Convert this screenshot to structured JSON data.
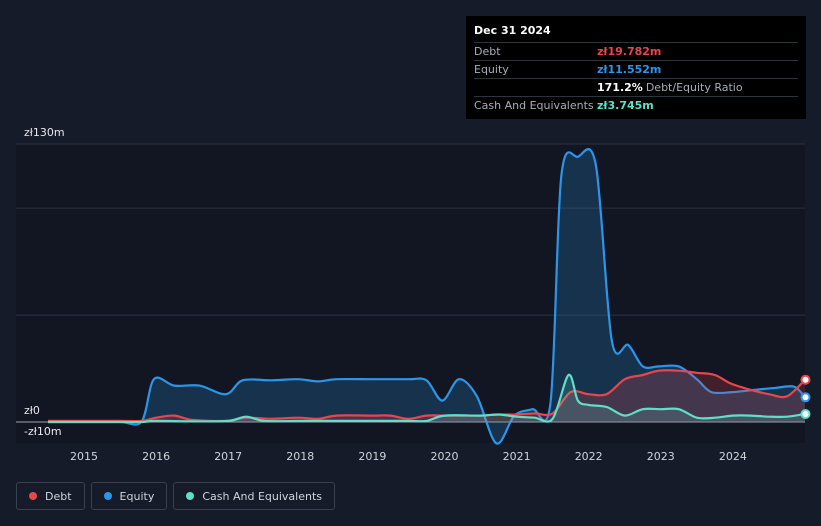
{
  "tooltip": {
    "date": "Dec 31 2024",
    "rows": [
      {
        "label": "Debt",
        "value": "zł19.782m",
        "color": "#e8464e"
      },
      {
        "label": "Equity",
        "value": "zł11.552m",
        "color": "#2d95e8"
      },
      {
        "label": "",
        "value": "171.2%",
        "unit": "Debt/Equity Ratio",
        "color": "#ffffff"
      },
      {
        "label": "Cash And Equivalents",
        "value": "zł3.745m",
        "color": "#5ee0c8"
      }
    ]
  },
  "legend": [
    {
      "label": "Debt",
      "color": "#e8464e"
    },
    {
      "label": "Equity",
      "color": "#2d95e8"
    },
    {
      "label": "Cash And Equivalents",
      "color": "#5ee0c8"
    }
  ],
  "chart_data": {
    "type": "area",
    "y_labels": [
      "zł130m",
      "zł0",
      "-zł10m"
    ],
    "ylim": [
      -10,
      130
    ],
    "xlim": [
      2014.5,
      2025.0
    ],
    "x_ticks": [
      2015,
      2016,
      2017,
      2018,
      2019,
      2020,
      2021,
      2022,
      2023,
      2024
    ],
    "series": [
      {
        "name": "Equity",
        "color": "#2d95e8",
        "points": [
          [
            2014.5,
            0
          ],
          [
            2015,
            0
          ],
          [
            2015.5,
            0
          ],
          [
            2015.8,
            0.3
          ],
          [
            2015.97,
            20
          ],
          [
            2016.25,
            17
          ],
          [
            2016.6,
            17
          ],
          [
            2016.97,
            13
          ],
          [
            2017.2,
            19.5
          ],
          [
            2017.6,
            19.5
          ],
          [
            2017.97,
            20
          ],
          [
            2018.25,
            19
          ],
          [
            2018.5,
            20
          ],
          [
            2019,
            20
          ],
          [
            2019.5,
            20
          ],
          [
            2019.75,
            19.5
          ],
          [
            2019.97,
            10
          ],
          [
            2020.2,
            20
          ],
          [
            2020.45,
            12
          ],
          [
            2020.72,
            -10
          ],
          [
            2020.97,
            3
          ],
          [
            2021.22,
            6
          ],
          [
            2021.47,
            9
          ],
          [
            2021.62,
            115
          ],
          [
            2021.85,
            124
          ],
          [
            2022.1,
            120
          ],
          [
            2022.32,
            38
          ],
          [
            2022.55,
            36
          ],
          [
            2022.75,
            26
          ],
          [
            2022.97,
            26
          ],
          [
            2023.25,
            26
          ],
          [
            2023.5,
            20
          ],
          [
            2023.7,
            14
          ],
          [
            2024,
            14
          ],
          [
            2024.3,
            15
          ],
          [
            2024.6,
            16
          ],
          [
            2024.85,
            16.5
          ],
          [
            2025.0,
            11.552
          ]
        ]
      },
      {
        "name": "Debt",
        "color": "#e8464e",
        "points": [
          [
            2014.5,
            0.5
          ],
          [
            2015,
            0.5
          ],
          [
            2015.5,
            0.5
          ],
          [
            2015.8,
            0.5
          ],
          [
            2016,
            2
          ],
          [
            2016.25,
            3
          ],
          [
            2016.5,
            1
          ],
          [
            2016.97,
            0.5
          ],
          [
            2017.25,
            2
          ],
          [
            2017.6,
            1.5
          ],
          [
            2017.97,
            2
          ],
          [
            2018.25,
            1.5
          ],
          [
            2018.5,
            3
          ],
          [
            2019,
            3
          ],
          [
            2019.25,
            3
          ],
          [
            2019.5,
            1.5
          ],
          [
            2019.75,
            3
          ],
          [
            2020,
            3
          ],
          [
            2020.25,
            3
          ],
          [
            2020.5,
            3
          ],
          [
            2020.75,
            3.5
          ],
          [
            2021,
            3.5
          ],
          [
            2021.25,
            4
          ],
          [
            2021.5,
            4
          ],
          [
            2021.75,
            14
          ],
          [
            2022,
            13
          ],
          [
            2022.25,
            13
          ],
          [
            2022.5,
            20
          ],
          [
            2022.75,
            22
          ],
          [
            2022.97,
            24
          ],
          [
            2023.25,
            24
          ],
          [
            2023.5,
            23
          ],
          [
            2023.75,
            22
          ],
          [
            2023.97,
            18
          ],
          [
            2024.25,
            15
          ],
          [
            2024.5,
            13
          ],
          [
            2024.75,
            12
          ],
          [
            2025.0,
            19.782
          ]
        ]
      },
      {
        "name": "Cash And Equivalents",
        "color": "#5ee0c8",
        "points": [
          [
            2014.5,
            0
          ],
          [
            2015,
            0
          ],
          [
            2015.5,
            0
          ],
          [
            2015.8,
            0
          ],
          [
            2016,
            0.5
          ],
          [
            2016.5,
            0.3
          ],
          [
            2017,
            0.5
          ],
          [
            2017.25,
            2.5
          ],
          [
            2017.5,
            0.5
          ],
          [
            2018,
            0.5
          ],
          [
            2018.5,
            0.5
          ],
          [
            2019,
            0.5
          ],
          [
            2019.5,
            0.5
          ],
          [
            2019.75,
            0.5
          ],
          [
            2020,
            3
          ],
          [
            2020.5,
            3
          ],
          [
            2020.75,
            3.5
          ],
          [
            2021,
            2.5
          ],
          [
            2021.25,
            2
          ],
          [
            2021.5,
            1.5
          ],
          [
            2021.72,
            22
          ],
          [
            2021.85,
            10
          ],
          [
            2022,
            8
          ],
          [
            2022.25,
            7
          ],
          [
            2022.5,
            3
          ],
          [
            2022.75,
            6
          ],
          [
            2023,
            6
          ],
          [
            2023.25,
            6
          ],
          [
            2023.5,
            2
          ],
          [
            2023.75,
            2
          ],
          [
            2024,
            3
          ],
          [
            2024.25,
            3
          ],
          [
            2024.5,
            2.5
          ],
          [
            2024.75,
            2.5
          ],
          [
            2025.0,
            3.745
          ]
        ]
      }
    ]
  }
}
